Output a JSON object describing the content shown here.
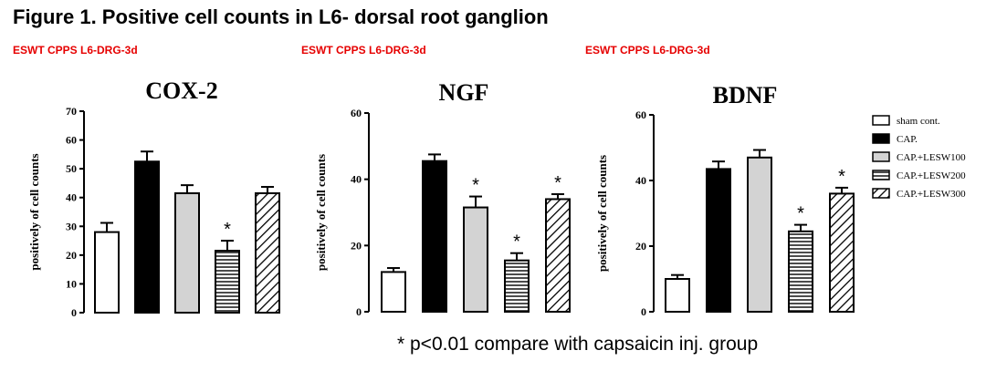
{
  "figure_title": "Figure 1. Positive cell counts in L6- dorsal root ganglion",
  "panel_labels": [
    "ESWT CPPS L6-DRG-3d",
    "ESWT CPPS L6-DRG-3d",
    "ESWT CPPS L6-DRG-3d"
  ],
  "footnote": "* p<0.01 compare with capsaicin inj. group",
  "legend": [
    {
      "label": "sham cont.",
      "fill": "white"
    },
    {
      "label": "CAP.",
      "fill": "black"
    },
    {
      "label": "CAP.+LESW100",
      "fill": "gray"
    },
    {
      "label": "CAP.+LESW200",
      "fill": "horizontal-lines"
    },
    {
      "label": "CAP.+LESW300",
      "fill": "diagonal-lines"
    }
  ],
  "chart_data": [
    {
      "type": "bar",
      "title": "COX-2",
      "ylabel": "positively of cell counts",
      "ylim": [
        0,
        70
      ],
      "yticks": [
        0,
        10,
        20,
        30,
        40,
        50,
        60,
        70
      ],
      "categories": [
        "sham cont.",
        "CAP.",
        "CAP.+LESW100",
        "CAP.+LESW200",
        "CAP.+LESW300"
      ],
      "values": [
        28,
        52.5,
        41.5,
        21.5,
        41.5
      ],
      "errors": [
        3.2,
        3.5,
        2.8,
        3.5,
        2.2
      ],
      "significant": [
        false,
        false,
        false,
        true,
        false
      ]
    },
    {
      "type": "bar",
      "title": "NGF",
      "ylabel": "positively of cell counts",
      "ylim": [
        0,
        60
      ],
      "yticks": [
        0,
        20,
        40,
        60
      ],
      "categories": [
        "sham cont.",
        "CAP.",
        "CAP.+LESW100",
        "CAP.+LESW200",
        "CAP.+LESW300"
      ],
      "values": [
        12,
        45.5,
        31.5,
        15.5,
        34
      ],
      "errors": [
        1.2,
        2.0,
        3.3,
        2.2,
        1.5
      ],
      "significant": [
        false,
        false,
        true,
        true,
        true
      ]
    },
    {
      "type": "bar",
      "title": "BDNF",
      "ylabel": "positively of cell counts",
      "ylim": [
        0,
        60
      ],
      "yticks": [
        0,
        20,
        40,
        60
      ],
      "categories": [
        "sham cont.",
        "CAP.",
        "CAP.+LESW100",
        "CAP.+LESW200",
        "CAP.+LESW300"
      ],
      "values": [
        10,
        43.5,
        47,
        24.5,
        36
      ],
      "errors": [
        1.2,
        2.3,
        2.3,
        2.0,
        1.8
      ],
      "significant": [
        false,
        false,
        false,
        true,
        true
      ]
    }
  ]
}
